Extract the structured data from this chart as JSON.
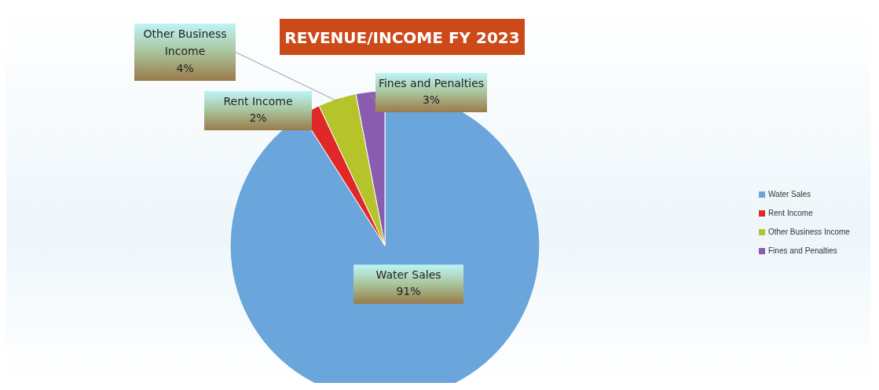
{
  "chart_data": {
    "type": "pie",
    "title": "REVENUE/INCOME FY 2023",
    "categories": [
      "Water Sales",
      "Rent Income",
      "Other Business Income",
      "Fines and Penalties"
    ],
    "values": [
      91,
      2,
      4,
      3
    ],
    "value_labels": [
      "91%",
      "2%",
      "4%",
      "3%"
    ],
    "colors": [
      "#6aa6dc",
      "#e02828",
      "#b4c42a",
      "#8a5cb0"
    ],
    "legend": "right"
  }
}
